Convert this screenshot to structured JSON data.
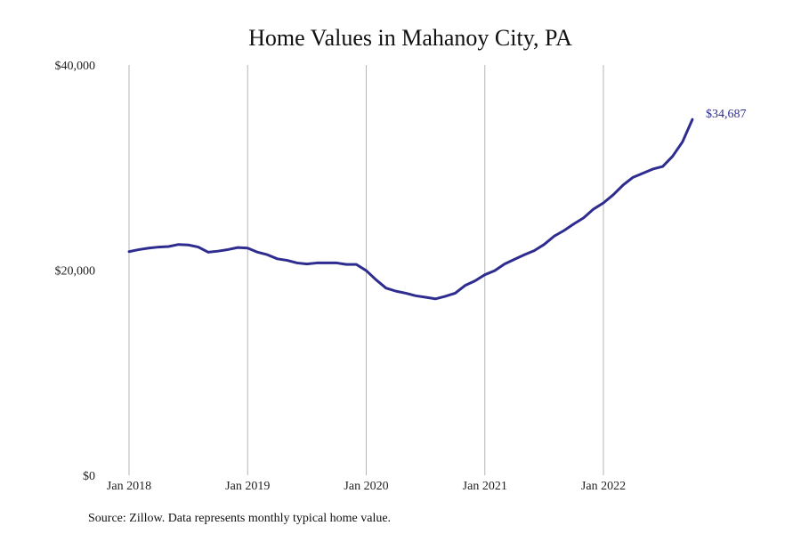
{
  "colors": {
    "line": "#2e2d8f",
    "grid": "#b5b5b5",
    "text": "#222222",
    "background": "#ffffff"
  },
  "chart_data": {
    "type": "line",
    "title": "Home Values in Mahanoy City, PA",
    "xlabel": "",
    "ylabel": "",
    "source": "Source: Zillow. Data represents monthly typical home value.",
    "end_label": "$34,687",
    "grid": "vertical",
    "legend": "none",
    "ylim": [
      0,
      40000
    ],
    "y_ticks": [
      {
        "value": 0,
        "label": "$0"
      },
      {
        "value": 20000,
        "label": "$20,000"
      },
      {
        "value": 40000,
        "label": "$40,000"
      }
    ],
    "xlim": [
      "2018-01",
      "2022-10"
    ],
    "x_ticks": [
      {
        "date": "2018-01",
        "label": "Jan 2018"
      },
      {
        "date": "2019-01",
        "label": "Jan 2019"
      },
      {
        "date": "2020-01",
        "label": "Jan 2020"
      },
      {
        "date": "2021-01",
        "label": "Jan 2021"
      },
      {
        "date": "2022-01",
        "label": "Jan 2022"
      }
    ],
    "series": [
      {
        "x": [
          "2018-01",
          "2018-02",
          "2018-03",
          "2018-04",
          "2018-05",
          "2018-06",
          "2018-07",
          "2018-08",
          "2018-09",
          "2018-10",
          "2018-11",
          "2018-12",
          "2019-01",
          "2019-02",
          "2019-03",
          "2019-04",
          "2019-05",
          "2019-06",
          "2019-07",
          "2019-08",
          "2019-09",
          "2019-10",
          "2019-11",
          "2019-12",
          "2020-01",
          "2020-02",
          "2020-03",
          "2020-04",
          "2020-05",
          "2020-06",
          "2020-07",
          "2020-08",
          "2020-09",
          "2020-10",
          "2020-11",
          "2020-12",
          "2021-01",
          "2021-02",
          "2021-03",
          "2021-04",
          "2021-05",
          "2021-06",
          "2021-07",
          "2021-08",
          "2021-09",
          "2021-10",
          "2021-11",
          "2021-12",
          "2022-01",
          "2022-02",
          "2022-03",
          "2022-04",
          "2022-05",
          "2022-06",
          "2022-07",
          "2022-08",
          "2022-09",
          "2022-10"
        ],
        "values": [
          21800,
          22000,
          22150,
          22250,
          22300,
          22500,
          22450,
          22250,
          21750,
          21850,
          22000,
          22200,
          22150,
          21750,
          21500,
          21100,
          20950,
          20700,
          20600,
          20700,
          20700,
          20700,
          20550,
          20550,
          19950,
          19050,
          18250,
          17950,
          17750,
          17500,
          17350,
          17200,
          17450,
          17750,
          18500,
          18950,
          19550,
          19950,
          20600,
          21050,
          21500,
          21900,
          22500,
          23300,
          23850,
          24500,
          25100,
          25950,
          26550,
          27350,
          28300,
          29050,
          29450,
          29850,
          30100,
          31100,
          32500,
          34687
        ]
      }
    ]
  }
}
